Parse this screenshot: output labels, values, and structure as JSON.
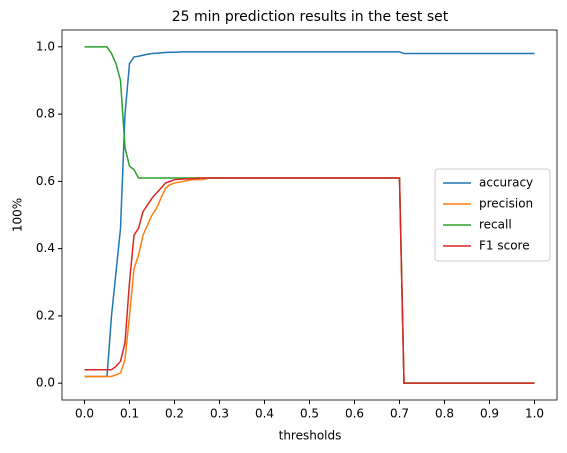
{
  "chart_data": {
    "type": "line",
    "title": "25 min prediction results in the test set",
    "x_label": "thresholds",
    "y_label": "100%",
    "x": [
      0,
      0.02,
      0.04,
      0.05,
      0.06,
      0.07,
      0.08,
      0.09,
      0.1,
      0.11,
      0.12,
      0.13,
      0.14,
      0.15,
      0.16,
      0.17,
      0.18,
      0.19,
      0.2,
      0.22,
      0.24,
      0.26,
      0.28,
      0.3,
      0.4,
      0.5,
      0.6,
      0.7,
      0.71,
      0.8,
      0.9,
      1.0
    ],
    "series": [
      {
        "name": "accuracy",
        "color": "#1f77b4",
        "values": [
          0.02,
          0.02,
          0.02,
          0.02,
          0.2,
          0.33,
          0.46,
          0.8,
          0.95,
          0.97,
          0.972,
          0.975,
          0.978,
          0.98,
          0.981,
          0.982,
          0.983,
          0.984,
          0.984,
          0.985,
          0.985,
          0.985,
          0.985,
          0.985,
          0.985,
          0.985,
          0.985,
          0.985,
          0.98,
          0.98,
          0.98,
          0.98
        ]
      },
      {
        "name": "precision",
        "color": "#ff7f0e",
        "values": [
          0.02,
          0.02,
          0.02,
          0.02,
          0.02,
          0.025,
          0.03,
          0.07,
          0.2,
          0.34,
          0.38,
          0.44,
          0.47,
          0.5,
          0.52,
          0.55,
          0.58,
          0.59,
          0.595,
          0.6,
          0.605,
          0.605,
          0.61,
          0.61,
          0.61,
          0.61,
          0.61,
          0.61,
          0,
          0,
          0,
          0
        ]
      },
      {
        "name": "recall",
        "color": "#2ca02c",
        "values": [
          1,
          1,
          1,
          1,
          0.98,
          0.95,
          0.9,
          0.7,
          0.645,
          0.635,
          0.61,
          0.61,
          0.61,
          0.61,
          0.61,
          0.61,
          0.61,
          0.61,
          0.61,
          0.61,
          0.61,
          0.61,
          0.61,
          0.61,
          0.61,
          0.61,
          0.61,
          0.61,
          0,
          0,
          0,
          0
        ]
      },
      {
        "name": "F1 score",
        "color": "#d62728",
        "values": [
          0.04,
          0.04,
          0.04,
          0.04,
          0.04,
          0.05,
          0.065,
          0.12,
          0.3,
          0.44,
          0.46,
          0.51,
          0.53,
          0.55,
          0.565,
          0.58,
          0.595,
          0.6,
          0.605,
          0.607,
          0.608,
          0.61,
          0.61,
          0.61,
          0.61,
          0.61,
          0.61,
          0.61,
          0,
          0,
          0,
          0
        ]
      }
    ],
    "xlim": [
      -0.05,
      1.05
    ],
    "ylim": [
      -0.05,
      1.05
    ],
    "xticks": [
      {
        "value": 0,
        "label": "0.0"
      },
      0.1,
      0.2,
      0.3,
      0.4,
      0.5,
      0.6,
      0.7,
      0.8,
      0.9,
      {
        "value": 1,
        "label": "1.0"
      }
    ],
    "yticks": [
      {
        "value": 0,
        "label": "0.0"
      },
      0.2,
      0.4,
      0.6,
      0.8,
      {
        "value": 1,
        "label": "1.0"
      }
    ],
    "legend": "center right"
  }
}
